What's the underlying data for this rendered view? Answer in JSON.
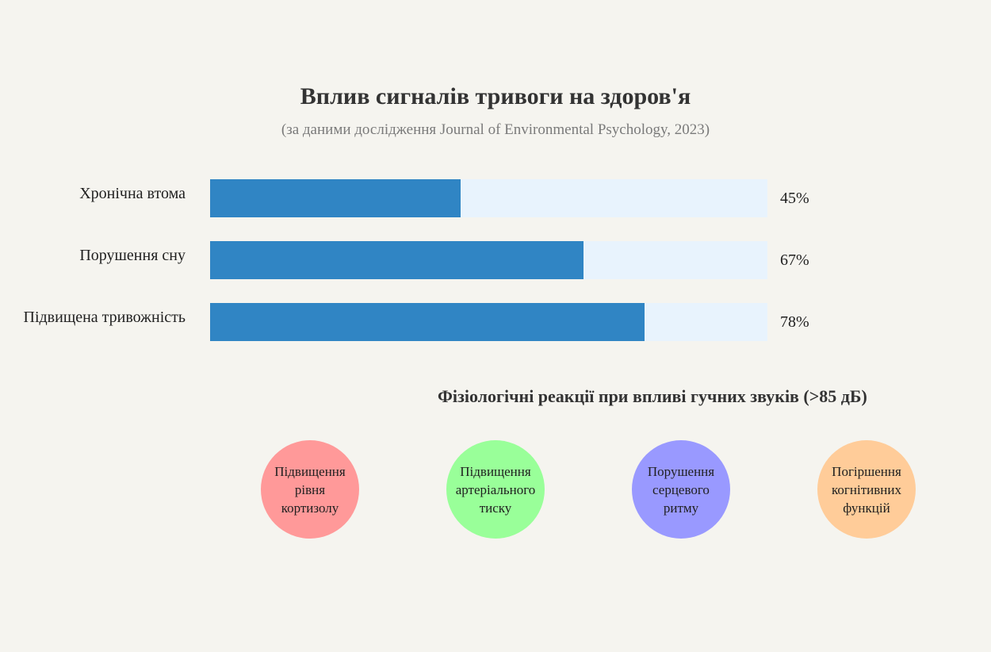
{
  "chart_data": {
    "type": "bar",
    "orientation": "horizontal",
    "title": "Вплив сигналів тривоги на здоров'я",
    "subtitle": "(за даними дослідження Journal of Environmental Psychology, 2023)",
    "categories": [
      "Хронічна втома",
      "Порушення сну",
      "Підвищена тривожність"
    ],
    "values": [
      45,
      67,
      78
    ],
    "value_labels": [
      "45%",
      "67%",
      "78%"
    ],
    "xlim": [
      0,
      100
    ],
    "grid": false,
    "colors": {
      "fill": "#3085c4",
      "track": "#e8f3fd"
    }
  },
  "reactions": {
    "title": "Фізіологічні реакції при впливі гучних звуків (>85 дБ)",
    "items": [
      {
        "lines": [
          "Підвищення",
          "рівня",
          "кортизолу"
        ],
        "color": "#ff9999"
      },
      {
        "lines": [
          "Підвищення",
          "артеріального",
          "тиску"
        ],
        "color": "#99ff99"
      },
      {
        "lines": [
          "Порушення",
          "серцевого",
          "ритму"
        ],
        "color": "#9999ff"
      },
      {
        "lines": [
          "Погіршення",
          "когнітивних",
          "функцій"
        ],
        "color": "#ffcc99"
      }
    ]
  }
}
